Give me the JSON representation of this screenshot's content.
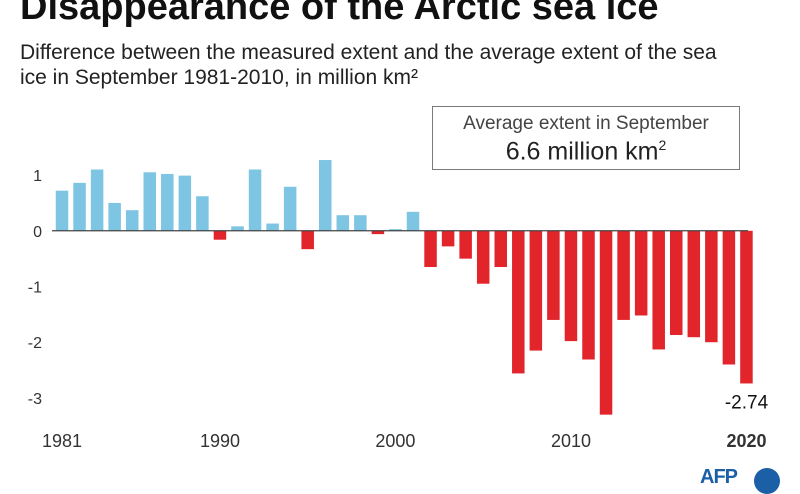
{
  "header": {
    "title": "Disappearance of the Arctic sea ice",
    "subtitle": "Difference between the measured extent and the average extent of the sea ice in September 1981-2010, in million km²"
  },
  "average_box": {
    "label": "Average extent in September",
    "value": "6.6 million km",
    "value_sup": "2"
  },
  "logo": {
    "text": "AFP",
    "color": "#1b5fa7"
  },
  "colors": {
    "positive": "#7ec4e3",
    "negative": "#e2242b",
    "axis": "#444444"
  },
  "chart_data": {
    "type": "bar",
    "title": "Disappearance of the Arctic sea ice",
    "x": [
      1981,
      1982,
      1983,
      1984,
      1985,
      1986,
      1987,
      1988,
      1989,
      1990,
      1991,
      1992,
      1993,
      1994,
      1995,
      1996,
      1997,
      1998,
      1999,
      2000,
      2001,
      2002,
      2003,
      2004,
      2005,
      2006,
      2007,
      2008,
      2009,
      2010,
      2011,
      2012,
      2013,
      2014,
      2015,
      2016,
      2017,
      2018,
      2019,
      2020
    ],
    "values": [
      0.72,
      0.86,
      1.1,
      0.5,
      0.37,
      1.05,
      1.02,
      0.99,
      0.62,
      -0.16,
      0.08,
      1.1,
      0.13,
      0.79,
      -0.33,
      1.27,
      0.28,
      0.28,
      -0.06,
      0.03,
      0.34,
      -0.65,
      -0.28,
      -0.5,
      -0.95,
      -0.65,
      -2.56,
      -2.15,
      -1.6,
      -1.98,
      -2.31,
      -3.3,
      -1.6,
      -1.52,
      -2.13,
      -1.87,
      -1.91,
      -2.0,
      -2.4,
      -2.74
    ],
    "x_tick_labels": [
      "1981",
      "1990",
      "2000",
      "2010",
      "2020"
    ],
    "x_tick_years": [
      1981,
      1990,
      2000,
      2010,
      2020
    ],
    "y_ticks": [
      1,
      0,
      -1,
      -2,
      -3
    ],
    "y_tick_labels": [
      "1",
      "0",
      "-1",
      "-2",
      "-3"
    ],
    "ylim": [
      -3.45,
      1.45
    ],
    "annotations": [
      {
        "year": 2020,
        "text": "-2.74"
      }
    ],
    "grid": false
  }
}
